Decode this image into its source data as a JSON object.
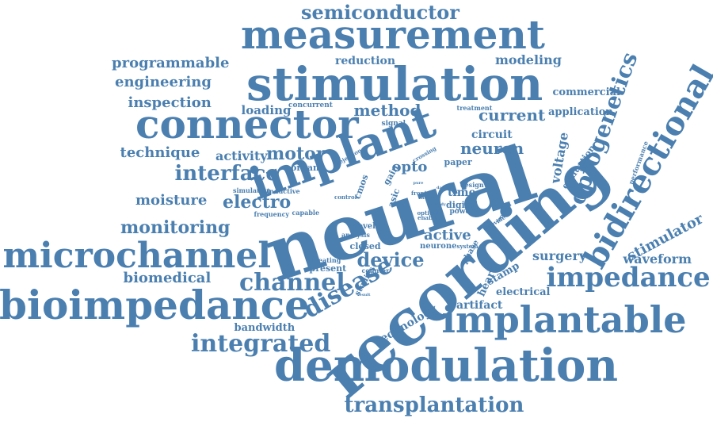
{
  "color": "#4a7fb0",
  "words": [
    "neural",
    "recording",
    "implant",
    "demodulation",
    "stimulation",
    "measurement",
    "connector",
    "bioimpedance",
    "microchannel",
    "implantable",
    "bidirectional",
    "optogenetics",
    "impedance",
    "channel",
    "disease",
    "integrated",
    "interface",
    "transplantation",
    "semiconductor",
    "device",
    "motor",
    "monitoring",
    "electro",
    "biomedical",
    "engineering",
    "programmable",
    "inspection",
    "stimulator",
    "waveform",
    "method",
    "current",
    "neuron",
    "technique",
    "moisture",
    "activity",
    "loading",
    "active",
    "surgery",
    "reduction",
    "modeling",
    "commercial",
    "application",
    "voltage",
    "bandwidth",
    "technology",
    "artifact",
    "electrical",
    "stamp",
    "heart",
    "opto",
    "organ",
    "time",
    "circuit",
    "paper",
    "digital",
    "closed",
    "present",
    "evaluation",
    "cmos",
    "gain",
    "asic",
    "phase",
    "novel",
    "neurone",
    "treating",
    "studies",
    "counter",
    "analysis",
    "frequency",
    "capable",
    "simulation",
    "inductive",
    "control",
    "signal",
    "concurrent",
    "treatment",
    "performance",
    "rejection",
    "crossing",
    "design",
    "front",
    "optical",
    "power",
    "enable",
    "module",
    "provide",
    "system",
    "pure",
    "day",
    "flash",
    "body",
    "result"
  ]
}
